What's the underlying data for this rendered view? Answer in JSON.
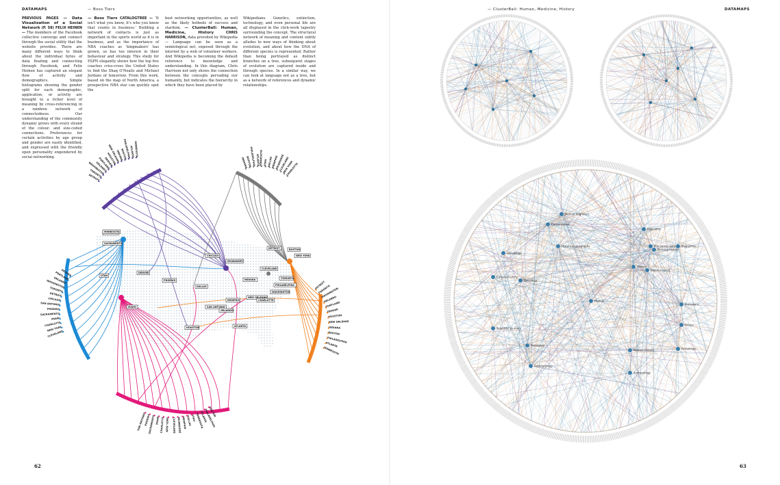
{
  "left_page": {
    "running_head": "DATAMAPS",
    "section_head": "— Boss Tiers",
    "folio": "62",
    "col1": {
      "kicker": "PREVIOUS PAGES",
      "headline": "— Data Visualization of a Social Network",
      "byline": "(P. 58) FELIX HEINEN —",
      "body": "The members of the Facebook collective converge and connect through the social utility that the website provides. There are many different ways to think about the individual bytes of data floating and connecting through Facebook, and Felix Heinen has captured an elegant flow of activity and demographics. Simple histograms showing the gender split for each demographic, application, or activity are brought to a richer level of meaning by cross-referencing in a rainbow network of connectedness. Our understanding of the community dynamic grows with every strand of the colour- and size-coded connections. Preferences for certain activities by age group and gender are easily identified, and expressed with the friendly open personality engendered by social networking."
    },
    "col2": {
      "headline": "— Boss Tiers",
      "byline": "CATALOGTREE —",
      "body": "'It isn't what you know, it's who you know that counts in business.' Building a network of contacts is just as important in the sports world as it is in business, and as the importance of NBA coaches as 'kingmakers' has grown, so has too interest in their behaviour and strategy. This study for ESPN elegantly shows how the top five coaches criss-cross the United States to find the Shaq O'Nealls and Michael Jordans of tomorrow. From this work, based on the map of North America, a prospective NBA star can quickly spot the"
    },
    "col3": {
      "body1": "best networking opportunities, as well as the likely hotbeds of success and stardom.",
      "headline": "— ClusterBall: Human, Medicine, History",
      "byline": "CHRIS HARRISON,",
      "body2": "data provided by Wikipedia — Language can be seen as a semiological net, exposed through the internet by a web of volunteer workers. And Wikipedia is becoming the default reference to knowledge and understanding. In this diagram, Chris Harrison not only shows the connection between the concepts pervading our humanity, but indicates the hierarchy in which they have been placed by"
    }
  },
  "right_page": {
    "running_head": "DATAMAPS",
    "section_head": "— ClusterBall: Human, Medicine, History",
    "folio": "63",
    "col4": {
      "body": "Wikipedians. Genetics, extinction, technology, and even personal life are all displayed in the click-work tapestry surrounding the concept. The structural network of meaning and content subtly alludes to new ways of thinking about evolution, and about how the DNA of different species is represented. Rather than being portrayed as distinct branches on a tree, subsequent stages of evolution are captured inside and through species. In a similar way, we can look at language not as a tree, but as a network of references and dynamic relationships."
    },
    "large_ball_labels": [
      "Human",
      "Historical geography",
      "Genealogy",
      "Cultural history",
      "Scientific journals",
      "Prehistory",
      "Anthropology",
      "Modern history",
      "Archaeology",
      "Paleolithic",
      "Population genetics",
      "Social science",
      "Pictorial history",
      "Magazines",
      "Periodicals",
      "Fiction",
      "Prehistoric",
      "History",
      "Human migration",
      "Conservation",
      "Sociology"
    ]
  },
  "boss_tiers": {
    "hubs": [
      "PORTLAND",
      "SACRAMENTO",
      "UTAH",
      "DENVER",
      "PHOENIX",
      "DALLAS",
      "HOUSTON",
      "SAN ANTONIO",
      "MEMPHIS",
      "NEW ORLEANS",
      "CHICAGO",
      "MILWAUKEE",
      "INDIANA",
      "DETROIT",
      "CLEVELAND",
      "BOSTON",
      "TORONTO",
      "NEW YORK",
      "PHILADELPHIA",
      "WASHINGTON",
      "CHARLOTTE",
      "ATLANTA",
      "ORLANDO",
      "MIAMI",
      "MINNESOTA"
    ],
    "colors": {
      "purple": "#5b3f9e",
      "gray": "#7a7a7a",
      "blue": "#1c8ad6",
      "magenta": "#e2197a",
      "orange": "#f0801e"
    }
  }
}
